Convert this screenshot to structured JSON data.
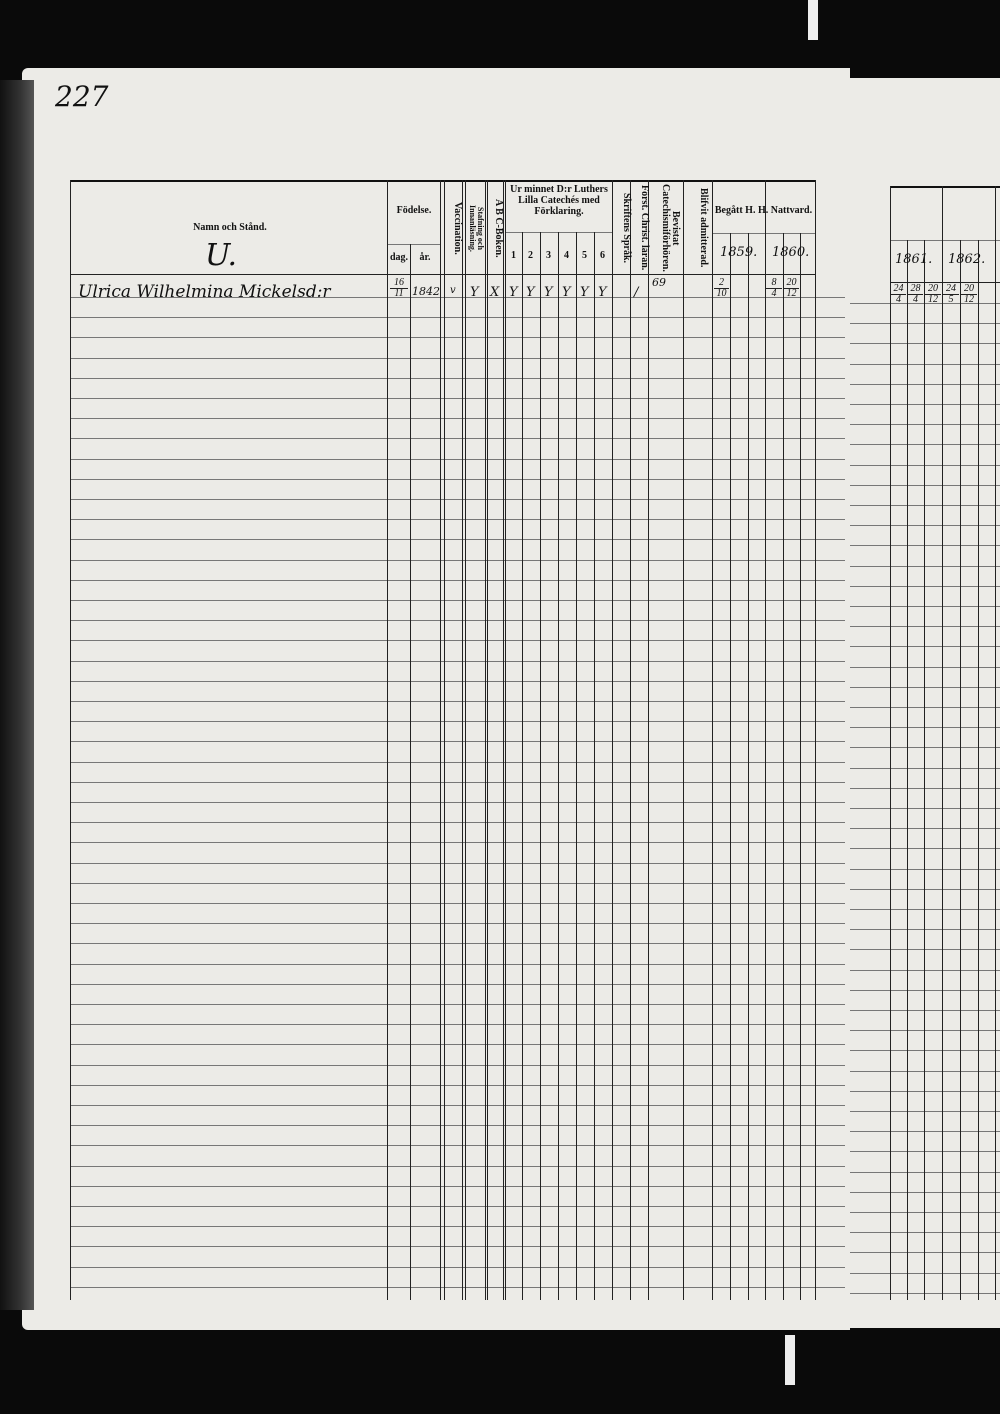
{
  "page_number": "227",
  "header": {
    "name_col": "Namn och Stånd.",
    "letter": "U.",
    "birth": "Födelse.",
    "birth_day": "dag.",
    "birth_year": "år.",
    "vaccination": "Vaccination.",
    "spelling": "Stafning och Innanläsning.",
    "abc": "A B C-Boken.",
    "catechism": "Ur minnet D:r Luthers Lilla Catechés med Förklaring.",
    "catechism_parts": [
      "1",
      "2",
      "3",
      "4",
      "5",
      "6"
    ],
    "writing": "Skriftens Språk.",
    "christ": "Först. Christ. läran.",
    "hearings": "Bevistat Catechismiförhören.",
    "admitted": "Blifvit admitterad.",
    "communion": "Begått H. H. Nattvard.",
    "years_left": [
      "1859.",
      "1860."
    ],
    "years_right": [
      "1861.",
      "1862."
    ]
  },
  "rows": [
    {
      "name": "Ulrica Wilhelmina Mickelsd:r",
      "day": "16/11",
      "year": "1842",
      "vaccination": "v",
      "spelling": "Y",
      "abc": "X",
      "catechism": [
        "Y",
        "Y",
        "Y",
        "Y",
        "Y",
        "Y"
      ],
      "writing": "",
      "christ": "/",
      "hearings": "69",
      "y1859": [
        "2/10",
        ""
      ],
      "y1860": [
        "8/4",
        "20/12"
      ],
      "y1861": [
        "24/4",
        "28/4"
      ],
      "y1862": [
        "20/12",
        "24/5",
        "20/12"
      ]
    }
  ]
}
